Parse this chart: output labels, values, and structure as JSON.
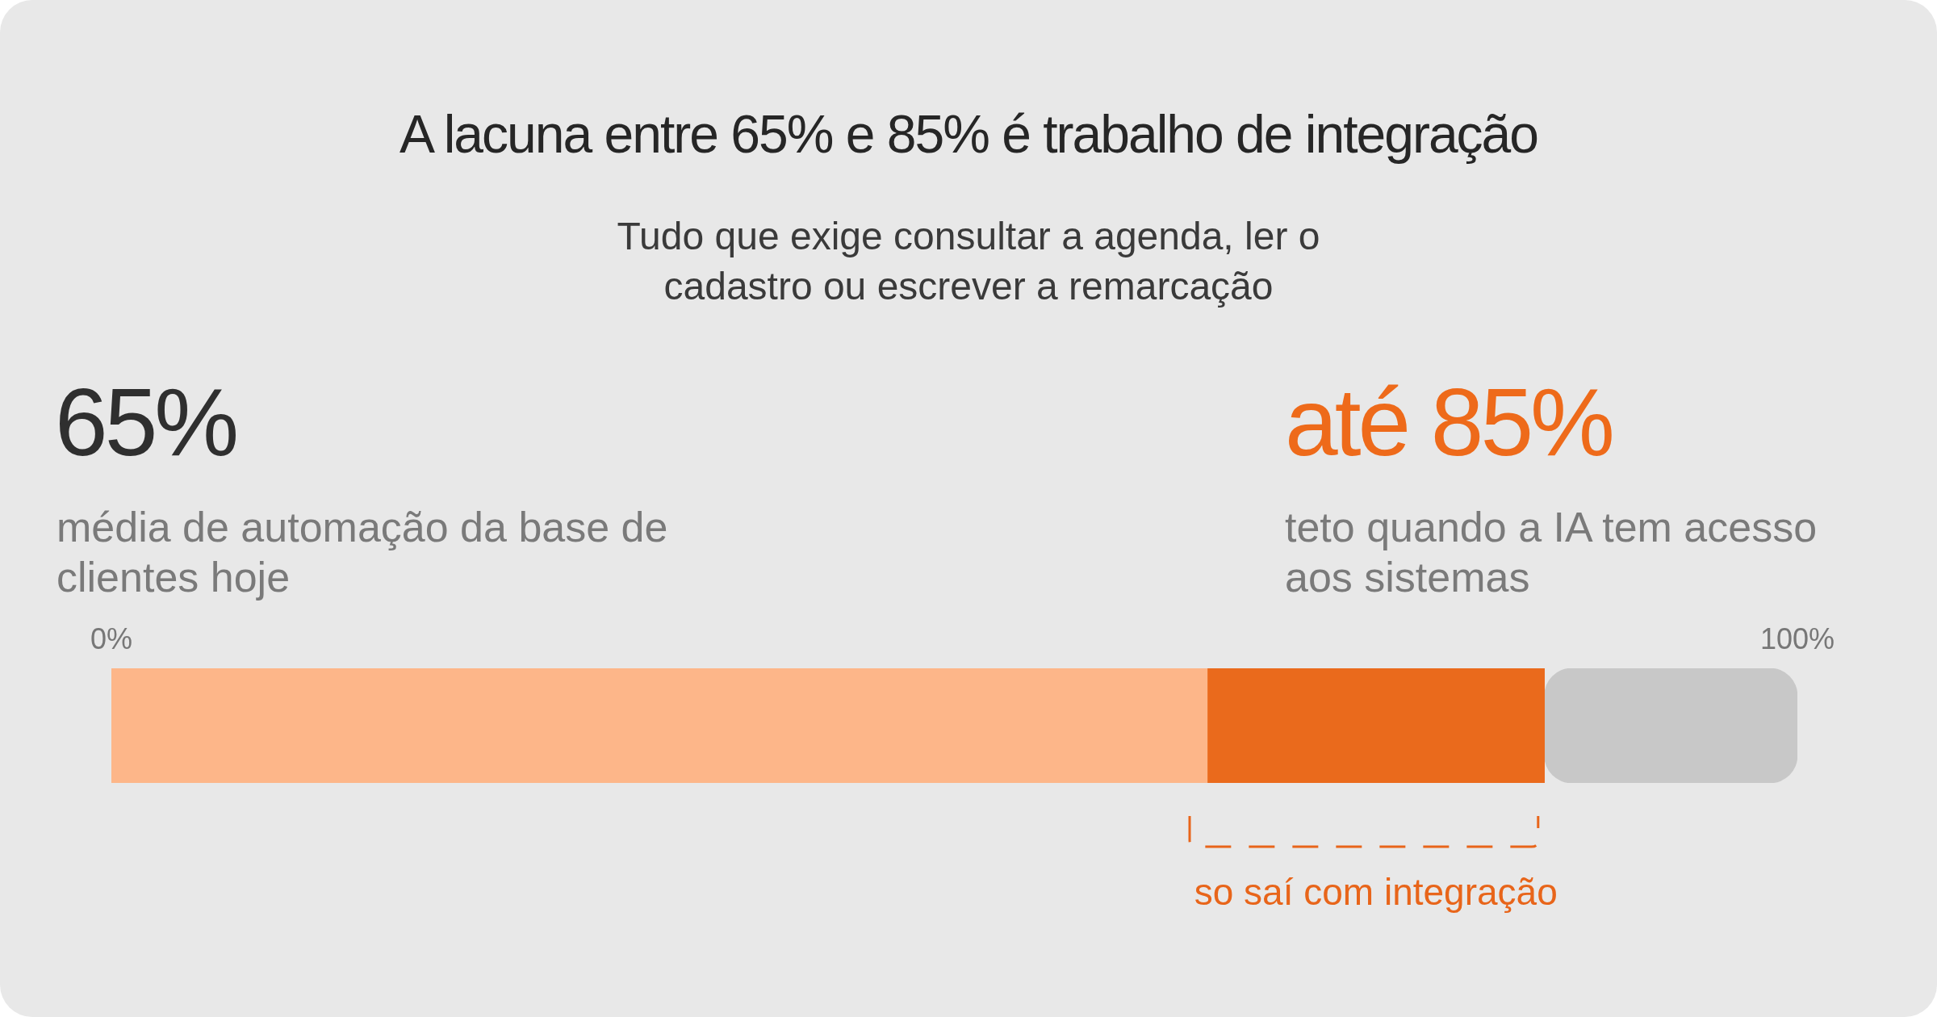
{
  "chart_data": {
    "type": "bar",
    "orientation": "horizontal",
    "stacked": true,
    "title": "A lacuna entre 65% e 85% é trabalho de integração",
    "subtitle": "Tudo que exige consultar a agenda, ler o cadastro ou escrever a remarcação",
    "categories": [
      null
    ],
    "series": [
      {
        "color": "#fdb689",
        "values": [
          65
        ]
      },
      {
        "color": "#ea6a1c",
        "values": [
          20
        ]
      },
      {
        "color": "#c8c8c8",
        "values": [
          15
        ]
      }
    ],
    "xlim": [
      0,
      100
    ],
    "xticks": [
      {
        "value": 0,
        "label": "0%"
      },
      {
        "value": 100,
        "label": "100%"
      }
    ],
    "grid": false,
    "legend": false,
    "annotations": [
      "65%",
      "média de automação da base de clientes hoje",
      "até 85%",
      "teto quando a IA tem acesso aos sistemas",
      "so saí com integração"
    ]
  }
}
